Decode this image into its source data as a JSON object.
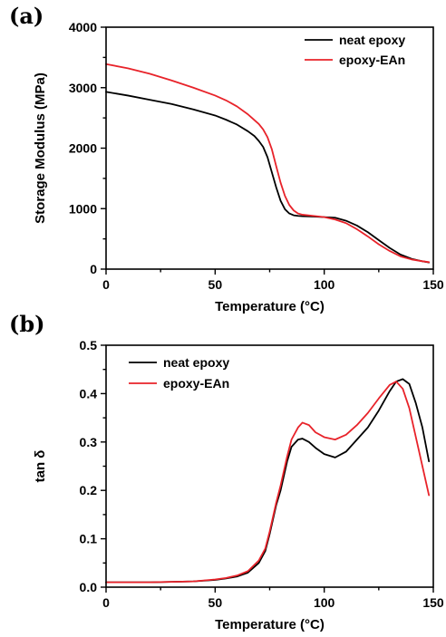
{
  "colors": {
    "neat": "#000000",
    "ean": "#e8232a"
  },
  "chart_data": [
    {
      "type": "line",
      "panel_label": "(a)",
      "xlabel": "Temperature (°C)",
      "ylabel": "Storage Modulus (MPa)",
      "xlim": [
        0,
        150
      ],
      "ylim": [
        0,
        4000
      ],
      "xticks": [
        0,
        50,
        100,
        150
      ],
      "yticks": [
        0,
        1000,
        2000,
        3000,
        4000
      ],
      "xtick_labels": [
        "0",
        "50",
        "100",
        "150"
      ],
      "ytick_labels": [
        "0",
        "1000",
        "2000",
        "3000",
        "4000"
      ],
      "grid": false,
      "legend_position": "top-right",
      "series": [
        {
          "name": "neat epoxy",
          "color": "#000000",
          "x": [
            0,
            10,
            20,
            30,
            40,
            50,
            55,
            60,
            65,
            68,
            70,
            72,
            74,
            76,
            78,
            80,
            82,
            84,
            86,
            88,
            90,
            95,
            100,
            105,
            110,
            115,
            120,
            125,
            130,
            135,
            140,
            145,
            148
          ],
          "y": [
            2930,
            2870,
            2800,
            2730,
            2640,
            2540,
            2470,
            2390,
            2280,
            2200,
            2120,
            2020,
            1850,
            1600,
            1350,
            1130,
            990,
            920,
            890,
            880,
            875,
            870,
            860,
            850,
            800,
            720,
            610,
            480,
            350,
            240,
            170,
            130,
            110
          ]
        },
        {
          "name": "epoxy-EAn",
          "color": "#e8232a",
          "x": [
            0,
            10,
            20,
            30,
            40,
            50,
            55,
            60,
            65,
            70,
            72,
            74,
            76,
            78,
            80,
            82,
            84,
            86,
            88,
            90,
            95,
            100,
            105,
            110,
            115,
            120,
            125,
            130,
            135,
            140,
            145,
            148
          ],
          "y": [
            3390,
            3320,
            3230,
            3120,
            3000,
            2870,
            2790,
            2690,
            2560,
            2400,
            2310,
            2180,
            1980,
            1700,
            1430,
            1210,
            1060,
            970,
            920,
            900,
            880,
            860,
            820,
            760,
            660,
            540,
            410,
            300,
            210,
            160,
            130,
            115
          ]
        }
      ]
    },
    {
      "type": "line",
      "panel_label": "(b)",
      "xlabel": "Temperature (°C)",
      "ylabel": "tan δ",
      "xlim": [
        0,
        150
      ],
      "ylim": [
        0,
        0.5
      ],
      "xticks": [
        0,
        50,
        100,
        150
      ],
      "yticks": [
        0,
        0.1,
        0.2,
        0.3,
        0.4,
        0.5
      ],
      "xtick_labels": [
        "0",
        "50",
        "100",
        "150"
      ],
      "ytick_labels": [
        "0.0",
        "0.1",
        "0.2",
        "0.3",
        "0.4",
        "0.5"
      ],
      "grid": false,
      "legend_position": "top-left",
      "series": [
        {
          "name": "neat epoxy",
          "color": "#000000",
          "x": [
            0,
            20,
            40,
            50,
            55,
            60,
            65,
            70,
            73,
            75,
            78,
            80,
            83,
            85,
            88,
            90,
            93,
            96,
            100,
            105,
            110,
            115,
            120,
            125,
            130,
            133,
            136,
            139,
            142,
            145,
            148
          ],
          "y": [
            0.01,
            0.01,
            0.012,
            0.015,
            0.018,
            0.022,
            0.03,
            0.05,
            0.075,
            0.11,
            0.17,
            0.2,
            0.26,
            0.29,
            0.305,
            0.307,
            0.3,
            0.288,
            0.275,
            0.268,
            0.28,
            0.305,
            0.33,
            0.365,
            0.405,
            0.425,
            0.43,
            0.42,
            0.38,
            0.33,
            0.26
          ]
        },
        {
          "name": "epoxy-EAn",
          "color": "#e8232a",
          "x": [
            0,
            20,
            40,
            50,
            55,
            60,
            65,
            70,
            73,
            75,
            78,
            80,
            83,
            85,
            88,
            90,
            93,
            96,
            100,
            105,
            110,
            115,
            120,
            125,
            130,
            133,
            136,
            139,
            142,
            145,
            148
          ],
          "y": [
            0.01,
            0.01,
            0.012,
            0.016,
            0.019,
            0.024,
            0.033,
            0.055,
            0.08,
            0.115,
            0.175,
            0.21,
            0.27,
            0.305,
            0.33,
            0.34,
            0.335,
            0.32,
            0.31,
            0.305,
            0.315,
            0.335,
            0.36,
            0.39,
            0.418,
            0.425,
            0.41,
            0.37,
            0.31,
            0.25,
            0.19
          ]
        }
      ]
    }
  ]
}
